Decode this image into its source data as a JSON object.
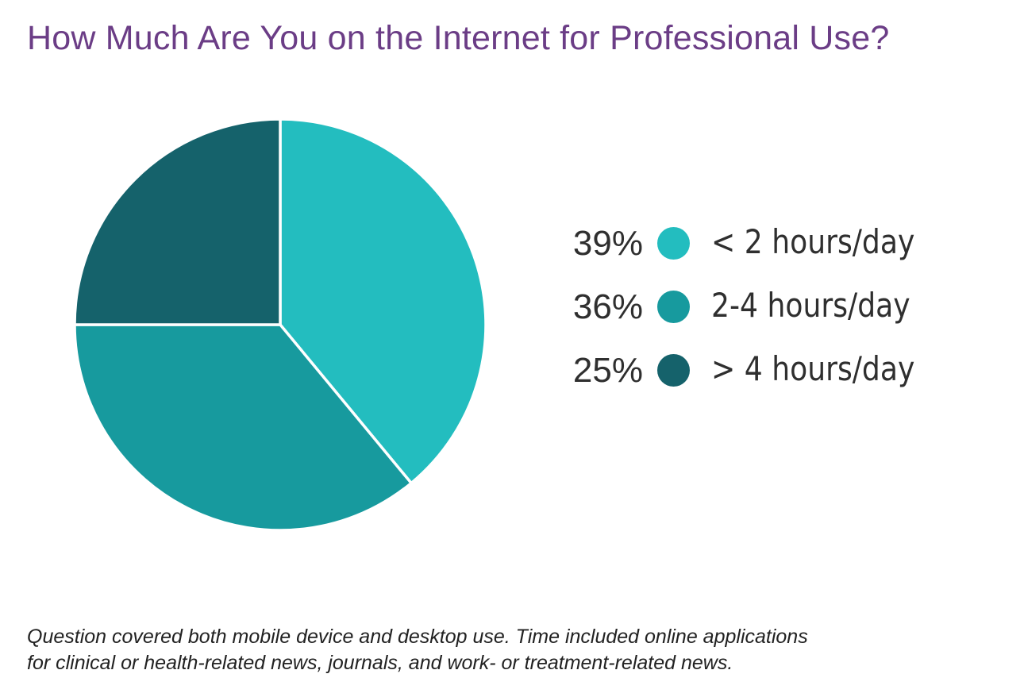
{
  "chart_data": {
    "type": "pie",
    "title": "How Much Are You on the Internet for Professional Use?",
    "slices": [
      {
        "label": "< 2 hours/day",
        "value": 39,
        "value_label": "39%",
        "color": "#23bdbf"
      },
      {
        "label": "2-4 hours/day",
        "value": 36,
        "value_label": "36%",
        "color": "#179a9e"
      },
      {
        "label": "> 4 hours/day",
        "value": 25,
        "value_label": "25%",
        "color": "#15626b"
      }
    ],
    "legend_position": "right"
  },
  "note": {
    "line1": "Question covered both mobile device and desktop use. Time included online applications",
    "line2": "for clinical or health-related news, journals, and work- or treatment-related news."
  }
}
